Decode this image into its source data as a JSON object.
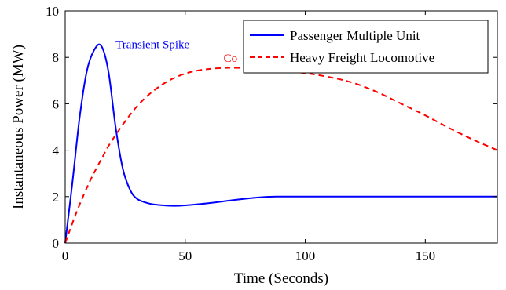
{
  "chart_data": {
    "type": "line",
    "xlabel": "Time (Seconds)",
    "ylabel": "Instantaneous Power (MW)",
    "xlim": [
      0,
      180
    ],
    "ylim": [
      0,
      10
    ],
    "x_ticks": [
      "0",
      "50",
      "100",
      "150"
    ],
    "y_ticks": [
      "0",
      "2",
      "4",
      "6",
      "8",
      "10"
    ],
    "grid": false,
    "legend_position": "top-right",
    "series": [
      {
        "name": "Passenger Multiple Unit",
        "color": "#0000ff",
        "style": "solid",
        "x": [
          0,
          3,
          6,
          9,
          12,
          15,
          18,
          21,
          24,
          27,
          30,
          35,
          40,
          45,
          50,
          60,
          70,
          80,
          88,
          100,
          120,
          140,
          160,
          180
        ],
        "y": [
          0,
          2.6,
          5.4,
          7.4,
          8.3,
          8.5,
          7.4,
          5.0,
          3.2,
          2.3,
          1.9,
          1.7,
          1.63,
          1.6,
          1.62,
          1.72,
          1.85,
          1.96,
          2.0,
          2.0,
          2.0,
          2.0,
          2.0,
          2.0
        ]
      },
      {
        "name": "Heavy Freight Locomotive",
        "color": "#ff0000",
        "style": "dashed",
        "x": [
          0,
          5,
          10,
          15,
          20,
          30,
          40,
          50,
          60,
          70,
          80,
          90,
          100,
          110,
          120,
          130,
          140,
          150,
          160,
          170,
          180
        ],
        "y": [
          0,
          1.4,
          2.6,
          3.6,
          4.5,
          5.9,
          6.8,
          7.3,
          7.5,
          7.55,
          7.5,
          7.42,
          7.32,
          7.15,
          6.9,
          6.5,
          6.0,
          5.5,
          4.95,
          4.45,
          4.0
        ]
      }
    ],
    "annotations": [
      {
        "text": "Transient Spike",
        "color": "#0000ff",
        "x": 21,
        "y": 8.4
      },
      {
        "text": "Co",
        "color": "#ff0000",
        "x": 66,
        "y": 7.8
      }
    ]
  }
}
